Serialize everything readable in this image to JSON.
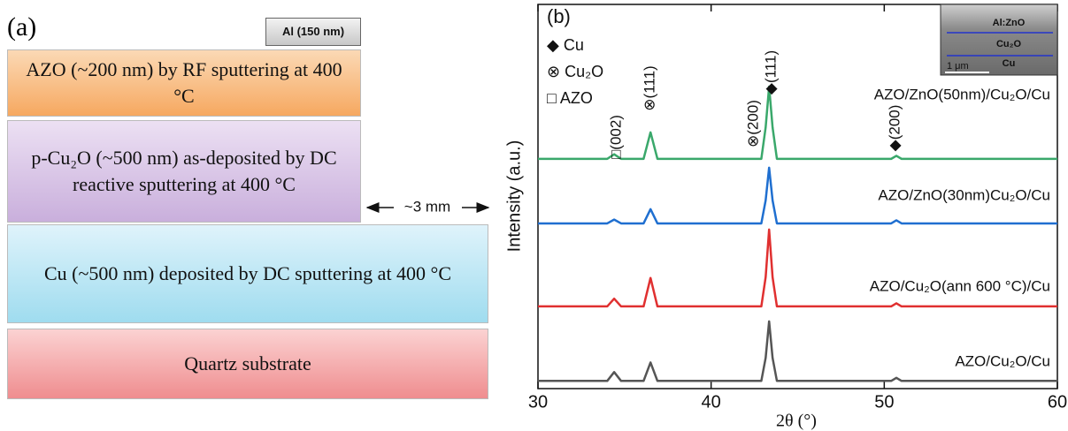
{
  "diagram": {
    "label": "(a)",
    "top_contact": "Al (150 nm)",
    "layers": [
      "AZO (~200 nm) by RF sputtering at 400 °C",
      "p-Cu₂O (~500 nm) as-deposited by DC reactive sputtering at 400 °C",
      "Cu (~500 nm) deposited by DC sputtering at 400 °C",
      "Quartz substrate"
    ],
    "gap_label": "~3 mm"
  },
  "chart_data": {
    "type": "line",
    "panel_label": "(b)",
    "x_label": "2θ (°)",
    "y_label": "Intensity (a.u.)",
    "x": [
      30,
      34.0,
      34.4,
      34.8,
      36.1,
      36.5,
      36.9,
      42.9,
      43.15,
      43.35,
      43.55,
      43.8,
      50.4,
      50.7,
      51.0,
      60
    ],
    "series": [
      {
        "name": "AZO/ZnO(50nm)/Cu₂O/Cu",
        "color": "#3aa86b",
        "values": [
          59.8,
          59.8,
          61,
          59.8,
          59.8,
          66.7,
          59.8,
          59.8,
          68,
          78.6,
          68,
          59.8,
          59.8,
          60.6,
          59.8,
          59.8
        ]
      },
      {
        "name": "AZO/ZnO(30nm)Cu₂O/Cu",
        "color": "#1f6fd0",
        "values": [
          43,
          43,
          44,
          43,
          43,
          46.7,
          43,
          43,
          49,
          57.5,
          49,
          43,
          43,
          43.8,
          43,
          43
        ]
      },
      {
        "name": "AZO/Cu₂O(ann 600 °C)/Cu",
        "color": "#e03030",
        "values": [
          21.4,
          21.4,
          23.4,
          21.4,
          21.4,
          28.8,
          21.4,
          21.4,
          29,
          41.4,
          29,
          21.4,
          21.4,
          22.2,
          21.4,
          21.4
        ]
      },
      {
        "name": "AZO/Cu₂O/Cu",
        "color": "#555555",
        "values": [
          2,
          2,
          4.3,
          2,
          2,
          6.8,
          2,
          2,
          8,
          17.5,
          8,
          2,
          2,
          2.8,
          2,
          2
        ]
      }
    ],
    "xlim": [
      30,
      60
    ],
    "xticks": [
      30,
      40,
      50,
      60
    ],
    "ylim": [
      0,
      100
    ],
    "legend_markers": [
      "◆ Cu",
      "⊗ Cu₂O",
      "□ AZO"
    ],
    "annotations": [
      "□(002)",
      "⊗(111)",
      "⊗(200)",
      "◆(111)",
      "◆(200)"
    ],
    "inset": {
      "labels": [
        "Al:ZnO",
        "Cu₂O",
        "Cu"
      ],
      "scale_bar": "1 μm"
    }
  }
}
